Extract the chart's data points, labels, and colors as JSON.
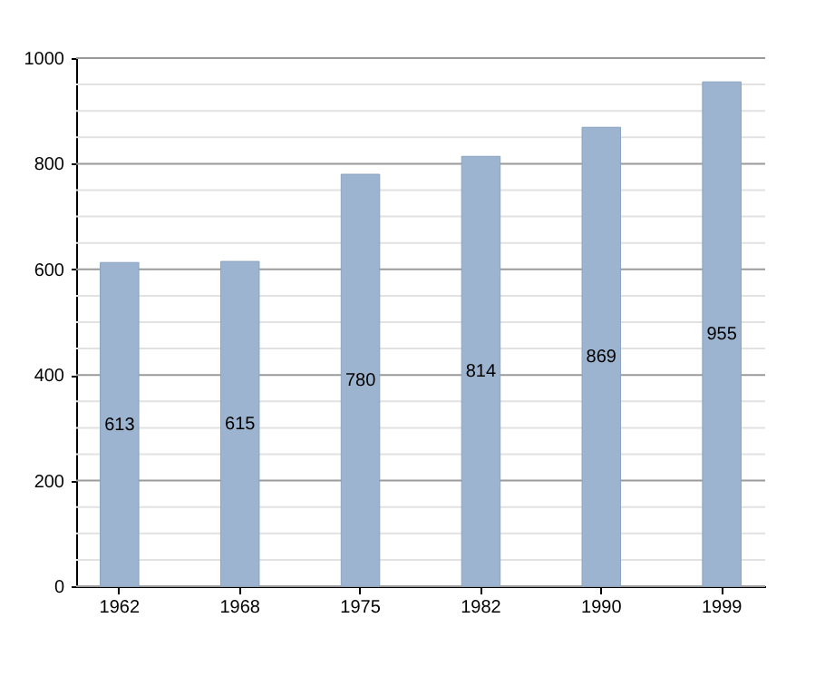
{
  "chart_data": {
    "type": "bar",
    "categories": [
      "1962",
      "1968",
      "1975",
      "1982",
      "1990",
      "1999"
    ],
    "values": [
      613,
      615,
      780,
      814,
      869,
      955
    ],
    "color": "#9cb4cf",
    "data_labels": true,
    "grid": "y",
    "ylim": [
      0,
      1000
    ],
    "yticks": [
      0,
      {
        "value": 50,
        "label": null
      },
      {
        "value": 100,
        "label": null
      },
      {
        "value": 150,
        "label": null
      },
      200,
      {
        "value": 250,
        "label": null
      },
      {
        "value": 300,
        "label": null
      },
      {
        "value": 350,
        "label": null
      },
      400,
      {
        "value": 450,
        "label": null
      },
      {
        "value": 500,
        "label": null
      },
      {
        "value": 550,
        "label": null
      },
      600,
      {
        "value": 650,
        "label": null
      },
      {
        "value": 700,
        "label": null
      },
      {
        "value": 750,
        "label": null
      },
      800,
      {
        "value": 850,
        "label": null
      },
      {
        "value": 900,
        "label": null
      },
      {
        "value": 950,
        "label": null
      },
      1000
    ]
  }
}
